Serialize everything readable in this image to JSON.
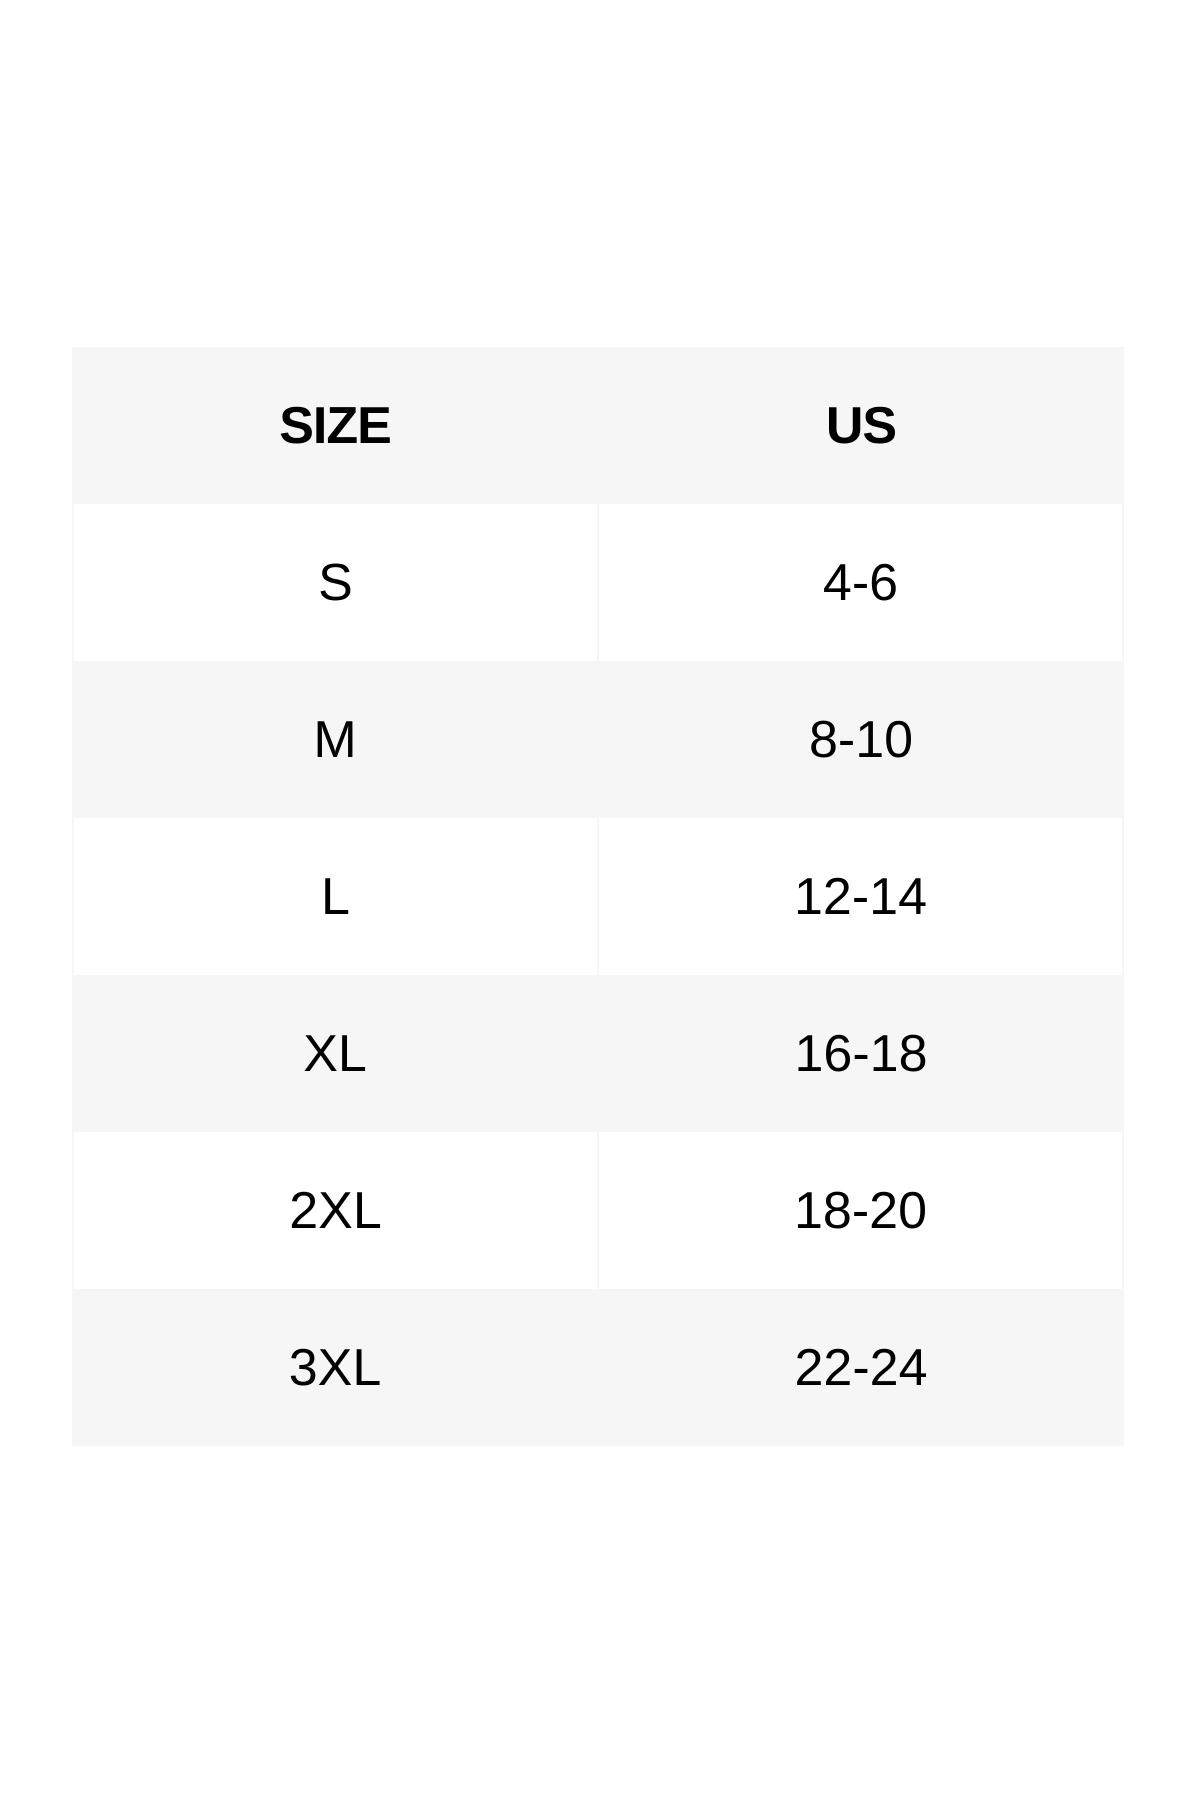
{
  "size_chart": {
    "headers": [
      "SIZE",
      "US"
    ],
    "rows": [
      [
        "S",
        "4-6"
      ],
      [
        "M",
        "8-10"
      ],
      [
        "L",
        "12-14"
      ],
      [
        "XL",
        "16-18"
      ],
      [
        "2XL",
        "18-20"
      ],
      [
        "3XL",
        "22-24"
      ]
    ],
    "colors": {
      "stripe": "#f6f6f6",
      "white": "#ffffff",
      "text": "#000000"
    }
  }
}
